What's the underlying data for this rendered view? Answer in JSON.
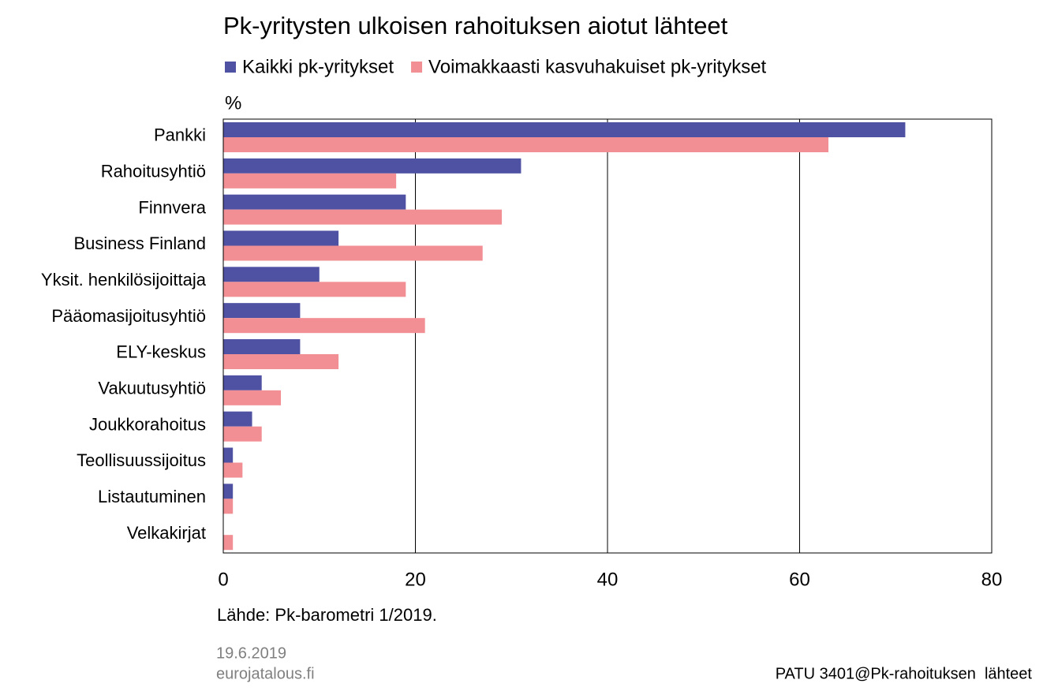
{
  "chart_data": {
    "type": "hbar",
    "title": "Pk-yritysten ulkoisen rahoituksen aiotut lähteet",
    "unit_label": "%",
    "categories": [
      "Pankki",
      "Rahoitusyhtiö",
      "Finnvera",
      "Business Finland",
      "Yksit. henkilösijoittaja",
      "Pääomasijoitusyhtiö",
      "ELY-keskus",
      "Vakuutusyhtiö",
      "Joukkorahoitus",
      "Teollisuussijoitus",
      "Listautuminen",
      "Velkakirjat"
    ],
    "series": [
      {
        "name": "Kaikki pk-yritykset",
        "color": "#4f51a3",
        "values": [
          71,
          31,
          19,
          12,
          10,
          8,
          8,
          4,
          3,
          1,
          1,
          0
        ]
      },
      {
        "name": "Voimakkaasti kasvuhakuiset pk-yritykset",
        "color": "#f28f94",
        "values": [
          63,
          18,
          29,
          27,
          19,
          21,
          12,
          6,
          4,
          2,
          1,
          1
        ]
      }
    ],
    "xlim": [
      0,
      80
    ],
    "xticks": [
      0,
      20,
      40,
      60,
      80
    ],
    "grid": true,
    "source": "Lähde: Pk-barometri 1/2019.",
    "date": "19.6.2019",
    "website": "eurojatalous.fi",
    "chart_id": "PATU 3401@Pk-rahoituksen  lähteet"
  }
}
